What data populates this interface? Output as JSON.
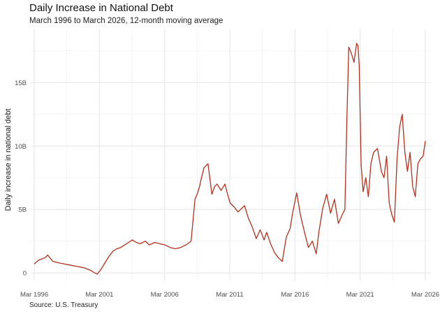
{
  "chart_data": {
    "type": "line",
    "title": "Daily Increase in National Debt",
    "subtitle": "March 1996 to March 2026, 12-month moving average",
    "source": "Source: U.S. Treasury",
    "ylabel": "Daily increase in national debt",
    "xlabel": "",
    "xlim": [
      1995.9,
      2026.6
    ],
    "ylim": [
      -0.6,
      19.2
    ],
    "x_ticks": [
      {
        "value": 1996.17,
        "label": "Mar 1996"
      },
      {
        "value": 2001.17,
        "label": "Mar 2001"
      },
      {
        "value": 2006.17,
        "label": "Mar 2006"
      },
      {
        "value": 2011.17,
        "label": "Mar 2011"
      },
      {
        "value": 2016.17,
        "label": "Mar 2016"
      },
      {
        "value": 2021.17,
        "label": "Mar 2021"
      },
      {
        "value": 2026.17,
        "label": "Mar 2026"
      }
    ],
    "y_ticks": [
      {
        "value": 0,
        "label": "0"
      },
      {
        "value": 5,
        "label": "5B"
      },
      {
        "value": 10,
        "label": "10B"
      },
      {
        "value": 15,
        "label": "15B"
      }
    ],
    "line_color": "#b5301c",
    "grid": true,
    "series": [
      {
        "name": "Daily increase in national debt (billions $)",
        "x": [
          1996.17,
          1996.5,
          1997.0,
          1997.2,
          1997.6,
          1998.0,
          1998.5,
          1999.0,
          1999.5,
          2000.0,
          2000.5,
          2000.8,
          2001.0,
          2001.3,
          2001.6,
          2001.9,
          2002.2,
          2002.5,
          2002.8,
          2003.1,
          2003.4,
          2003.7,
          2004.0,
          2004.3,
          2004.7,
          2005.0,
          2005.4,
          2005.8,
          2006.2,
          2006.6,
          2007.0,
          2007.4,
          2007.8,
          2008.2,
          2008.5,
          2008.7,
          2008.85,
          2009.0,
          2009.2,
          2009.5,
          2009.8,
          2010.0,
          2010.2,
          2010.5,
          2010.8,
          2011.0,
          2011.2,
          2011.5,
          2011.8,
          2012.0,
          2012.3,
          2012.6,
          2012.9,
          2013.2,
          2013.5,
          2013.8,
          2014.0,
          2014.3,
          2014.6,
          2014.9,
          2015.2,
          2015.5,
          2015.8,
          2016.0,
          2016.3,
          2016.6,
          2016.9,
          2017.2,
          2017.5,
          2017.8,
          2018.0,
          2018.3,
          2018.6,
          2018.9,
          2019.2,
          2019.5,
          2019.8,
          2020.0,
          2020.15,
          2020.3,
          2020.5,
          2020.7,
          2020.9,
          2021.0,
          2021.1,
          2021.25,
          2021.4,
          2021.6,
          2021.8,
          2022.0,
          2022.2,
          2022.5,
          2022.8,
          2023.0,
          2023.2,
          2023.4,
          2023.6,
          2023.8,
          2024.0,
          2024.2,
          2024.4,
          2024.6,
          2024.8,
          2025.0,
          2025.2,
          2025.4,
          2025.6,
          2025.8,
          2026.0,
          2026.17
        ],
        "y": [
          0.7,
          1.0,
          1.2,
          1.4,
          0.9,
          0.8,
          0.7,
          0.6,
          0.5,
          0.4,
          0.2,
          0.0,
          -0.1,
          0.3,
          0.8,
          1.3,
          1.7,
          1.9,
          2.0,
          2.2,
          2.4,
          2.6,
          2.4,
          2.3,
          2.5,
          2.2,
          2.4,
          2.3,
          2.2,
          2.0,
          1.9,
          2.0,
          2.2,
          2.5,
          5.8,
          6.3,
          6.8,
          7.5,
          8.3,
          8.6,
          6.2,
          6.8,
          7.0,
          6.5,
          7.0,
          6.2,
          5.5,
          5.2,
          4.8,
          5.0,
          5.3,
          4.3,
          3.6,
          2.7,
          3.4,
          2.6,
          3.2,
          2.3,
          1.6,
          1.2,
          0.9,
          2.8,
          3.5,
          4.8,
          6.3,
          4.5,
          3.2,
          2.0,
          2.5,
          1.5,
          3.2,
          5.1,
          6.2,
          4.7,
          5.8,
          3.9,
          4.6,
          5.0,
          12.0,
          17.8,
          17.3,
          16.6,
          18.1,
          17.9,
          16.4,
          8.5,
          6.4,
          7.5,
          6.0,
          8.6,
          9.5,
          9.8,
          8.0,
          7.5,
          9.2,
          5.5,
          4.6,
          4.0,
          9.0,
          11.5,
          12.5,
          9.5,
          8.0,
          9.5,
          6.8,
          6.0,
          8.6,
          9.0,
          9.2,
          10.4
        ]
      }
    ]
  }
}
